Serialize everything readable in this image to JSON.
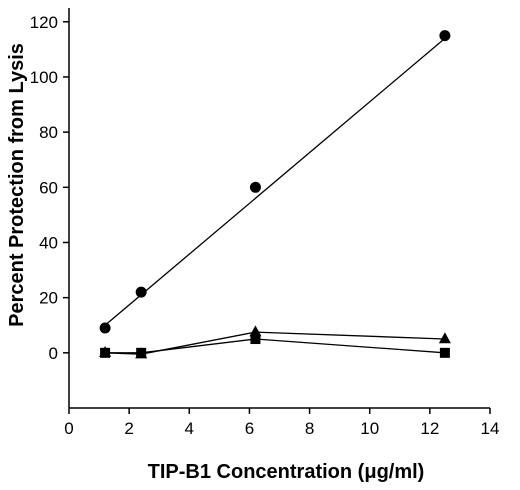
{
  "chart_data": {
    "type": "scatter",
    "title": "",
    "xlabel": "TIP-B1 Concentration (μg/ml)",
    "ylabel": "Percent Protection from Lysis",
    "xlim": [
      0,
      14
    ],
    "ylim": [
      -20,
      125
    ],
    "x_ticks": [
      0,
      2,
      4,
      6,
      8,
      10,
      12,
      14
    ],
    "y_ticks": [
      0,
      20,
      40,
      60,
      80,
      100,
      120
    ],
    "grid": false,
    "legend": "none",
    "series": [
      {
        "marker": "circle",
        "color": "#000000",
        "points": [
          [
            1.2,
            9
          ],
          [
            2.4,
            22
          ],
          [
            6.2,
            60
          ],
          [
            12.5,
            115
          ]
        ],
        "fit_line": {
          "x": [
            1.2,
            12.5
          ],
          "y": [
            10,
            114
          ]
        }
      },
      {
        "marker": "triangle",
        "color": "#000000",
        "points": [
          [
            1.2,
            0
          ],
          [
            2.4,
            -0.5
          ],
          [
            6.2,
            7.5
          ],
          [
            12.5,
            5
          ]
        ],
        "line": "connect"
      },
      {
        "marker": "square",
        "color": "#000000",
        "points": [
          [
            1.2,
            0
          ],
          [
            2.4,
            0
          ],
          [
            6.2,
            5
          ],
          [
            12.5,
            0
          ]
        ],
        "line": "connect"
      }
    ]
  }
}
